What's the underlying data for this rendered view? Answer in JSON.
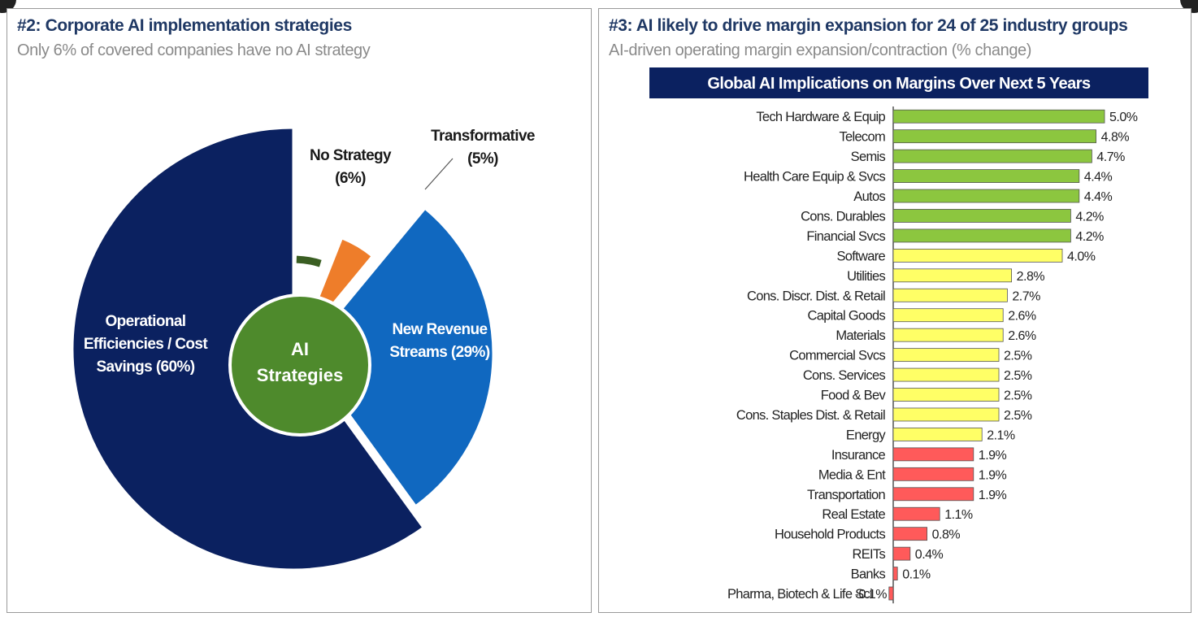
{
  "left_panel": {
    "title": "#2: Corporate AI implementation strategies",
    "subtitle": "Only 6% of covered companies have no AI strategy"
  },
  "right_panel": {
    "title": "#3: AI likely to drive margin expansion for 24 of 25 industry groups",
    "subtitle": "AI-driven operating margin expansion/contraction (% change)"
  },
  "chart_data": [
    {
      "type": "pie",
      "center_label": [
        "AI",
        "Strategies"
      ],
      "slices": [
        {
          "name": "Operational Efficiencies / Cost Savings",
          "label": [
            "Operational",
            "Efficiencies / Cost",
            "Savings (60%)"
          ],
          "value": 60,
          "color": "#0b2160"
        },
        {
          "name": "No Strategy",
          "label": [
            "No Strategy",
            "(6%)"
          ],
          "value": 6,
          "color": "#ffffff"
        },
        {
          "name": "Transformative",
          "label": [
            "Transformative",
            "(5%)"
          ],
          "value": 5,
          "color": "#ee7d2a"
        },
        {
          "name": "New Revenue Streams",
          "label": [
            "New Revenue",
            "Streams (29%)"
          ],
          "value": 29,
          "color": "#1068c0"
        }
      ],
      "colors": {
        "center": "#4e8a2c",
        "no_strategy_arc": "#3a5e22"
      }
    },
    {
      "type": "bar",
      "orientation": "horizontal",
      "title": "Global AI Implications on Margins Over Next 5 Years",
      "categories": [
        "Tech Hardware & Equip",
        "Telecom",
        "Semis",
        "Health Care Equip & Svcs",
        "Autos",
        "Cons. Durables",
        "Financial Svcs",
        "Software",
        "Utilities",
        "Cons. Discr. Dist. & Retail",
        "Capital Goods",
        "Materials",
        "Commercial Svcs",
        "Cons. Services",
        "Food & Bev",
        "Cons. Staples Dist. & Retail",
        "Energy",
        "Insurance",
        "Media & Ent",
        "Transportation",
        "Real Estate",
        "Household Products",
        "REITs",
        "Banks",
        "Pharma, Biotech & Life Sci"
      ],
      "values": [
        5.0,
        4.8,
        4.7,
        4.4,
        4.4,
        4.2,
        4.2,
        4.0,
        2.8,
        2.7,
        2.6,
        2.6,
        2.5,
        2.5,
        2.5,
        2.5,
        2.1,
        1.9,
        1.9,
        1.9,
        1.1,
        0.8,
        0.4,
        0.1,
        -0.1
      ],
      "value_labels": [
        "5.0%",
        "4.8%",
        "4.7%",
        "4.4%",
        "4.4%",
        "4.2%",
        "4.2%",
        "4.0%",
        "2.8%",
        "2.7%",
        "2.6%",
        "2.6%",
        "2.5%",
        "2.5%",
        "2.5%",
        "2.5%",
        "2.1%",
        "1.9%",
        "1.9%",
        "1.9%",
        "1.1%",
        "0.8%",
        "0.4%",
        "0.1%",
        "-0.1%"
      ],
      "bar_colors": [
        "#8cc63f",
        "#8cc63f",
        "#8cc63f",
        "#8cc63f",
        "#8cc63f",
        "#8cc63f",
        "#8cc63f",
        "#ffff66",
        "#ffff66",
        "#ffff66",
        "#ffff66",
        "#ffff66",
        "#ffff66",
        "#ffff66",
        "#ffff66",
        "#ffff66",
        "#ffff66",
        "#ff5a5a",
        "#ff5a5a",
        "#ff5a5a",
        "#ff5a5a",
        "#ff5a5a",
        "#ff5a5a",
        "#ff5a5a",
        "#ff5a5a"
      ],
      "title_bar_color": "#0b2160",
      "grid": false
    }
  ]
}
